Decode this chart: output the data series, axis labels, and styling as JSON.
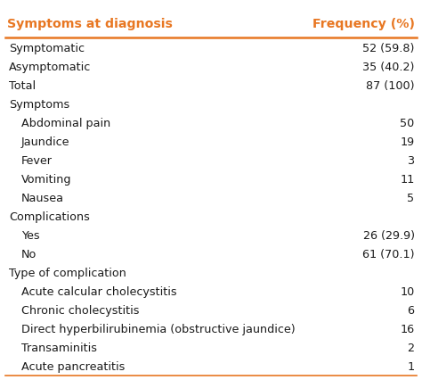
{
  "header_col1": "Symptoms at diagnosis",
  "header_col2": "Frequency (%)",
  "header_color": "#E87722",
  "background_color": "#ffffff",
  "rows": [
    {
      "label": "Symptomatic",
      "indent": 0,
      "value": "52 (59.8)"
    },
    {
      "label": "Asymptomatic",
      "indent": 0,
      "value": "35 (40.2)"
    },
    {
      "label": "Total",
      "indent": 0,
      "value": "87 (100)"
    },
    {
      "label": "Symptoms",
      "indent": 0,
      "value": ""
    },
    {
      "label": "Abdominal pain",
      "indent": 1,
      "value": "50"
    },
    {
      "label": "Jaundice",
      "indent": 1,
      "value": "19"
    },
    {
      "label": "Fever",
      "indent": 1,
      "value": "3"
    },
    {
      "label": "Vomiting",
      "indent": 1,
      "value": "11"
    },
    {
      "label": "Nausea",
      "indent": 1,
      "value": "5"
    },
    {
      "label": "Complications",
      "indent": 0,
      "value": ""
    },
    {
      "label": "Yes",
      "indent": 1,
      "value": "26 (29.9)"
    },
    {
      "label": "No",
      "indent": 1,
      "value": "61 (70.1)"
    },
    {
      "label": "Type of complication",
      "indent": 0,
      "value": ""
    },
    {
      "label": "Acute calcular cholecystitis",
      "indent": 1,
      "value": "10"
    },
    {
      "label": "Chronic cholecystitis",
      "indent": 1,
      "value": "6"
    },
    {
      "label": "Direct hyperbilirubinemia (obstructive jaundice)",
      "indent": 1,
      "value": "16"
    },
    {
      "label": "Transaminitis",
      "indent": 1,
      "value": "2"
    },
    {
      "label": "Acute pancreatitis",
      "indent": 1,
      "value": "1"
    }
  ],
  "font_size": 9.2,
  "header_font_size": 10.2,
  "indent_size": 0.03,
  "text_color": "#1a1a1a",
  "line_color": "#E87722"
}
